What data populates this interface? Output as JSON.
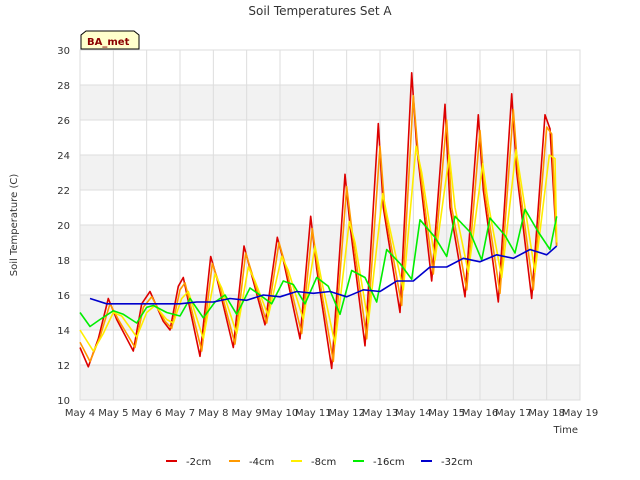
{
  "chart_data": {
    "type": "line",
    "title": "Soil Temperatures Set A",
    "xlabel": "Time",
    "ylabel": "Soil Temperature (C)",
    "badge": "BA_met",
    "ylim": [
      10,
      30
    ],
    "yticks": [
      10,
      12,
      14,
      16,
      18,
      20,
      22,
      24,
      26,
      28,
      30
    ],
    "xlim": [
      4,
      19
    ],
    "xticks": [
      {
        "x": 4,
        "label": "May 4"
      },
      {
        "x": 5,
        "label": "May 5"
      },
      {
        "x": 6,
        "label": "May 6"
      },
      {
        "x": 7,
        "label": "May 7"
      },
      {
        "x": 8,
        "label": "May 8"
      },
      {
        "x": 9,
        "label": "May 9"
      },
      {
        "x": 10,
        "label": "May 10"
      },
      {
        "x": 11,
        "label": "May 11"
      },
      {
        "x": 12,
        "label": "May 12"
      },
      {
        "x": 13,
        "label": "May 13"
      },
      {
        "x": 14,
        "label": "May 14"
      },
      {
        "x": 15,
        "label": "May 15"
      },
      {
        "x": 16,
        "label": "May 16"
      },
      {
        "x": 17,
        "label": "May 17"
      },
      {
        "x": 18,
        "label": "May 18"
      },
      {
        "x": 19,
        "label": "May 19"
      }
    ],
    "grid": true,
    "legend_position": "bottom",
    "series": [
      {
        "name": "-2cm",
        "color": "#dd0000",
        "x": [
          4.0,
          4.25,
          4.55,
          4.85,
          5.1,
          5.6,
          5.85,
          6.1,
          6.5,
          6.7,
          6.95,
          7.1,
          7.6,
          7.92,
          8.1,
          8.6,
          8.92,
          9.1,
          9.55,
          9.92,
          10.1,
          10.6,
          10.92,
          11.1,
          11.55,
          11.95,
          12.1,
          12.55,
          12.95,
          13.1,
          13.6,
          13.95,
          14.1,
          14.55,
          14.95,
          15.1,
          15.55,
          15.95,
          16.1,
          16.55,
          16.95,
          17.1,
          17.55,
          17.95,
          18.1,
          18.3
        ],
        "y": [
          13.0,
          11.9,
          13.5,
          15.8,
          14.6,
          12.8,
          15.5,
          16.2,
          14.5,
          14.0,
          16.5,
          17.0,
          12.5,
          18.2,
          17.0,
          13.0,
          18.8,
          17.5,
          14.3,
          19.3,
          18.0,
          13.5,
          20.5,
          17.5,
          11.8,
          22.9,
          20.0,
          13.1,
          25.8,
          21.0,
          15.0,
          28.7,
          24.5,
          16.8,
          26.9,
          21.0,
          15.9,
          26.3,
          22.0,
          15.6,
          27.5,
          23.0,
          15.8,
          26.3,
          25.5,
          18.8
        ]
      },
      {
        "name": "-4cm",
        "color": "#ff9900",
        "x": [
          4.0,
          4.3,
          4.6,
          4.9,
          5.15,
          5.65,
          5.9,
          6.15,
          6.55,
          6.75,
          7.0,
          7.15,
          7.65,
          7.97,
          8.15,
          8.65,
          8.97,
          9.15,
          9.6,
          9.97,
          10.15,
          10.65,
          10.97,
          11.15,
          11.6,
          12.0,
          12.15,
          12.6,
          13.0,
          13.15,
          13.65,
          14.0,
          14.15,
          14.6,
          15.0,
          15.15,
          15.6,
          16.0,
          16.15,
          16.6,
          17.0,
          17.15,
          17.6,
          18.0,
          18.15,
          18.3
        ],
        "y": [
          13.3,
          12.2,
          13.6,
          15.5,
          14.6,
          13.0,
          15.3,
          15.9,
          14.5,
          14.1,
          16.3,
          16.7,
          12.8,
          17.8,
          16.8,
          13.2,
          18.4,
          17.3,
          14.4,
          19.0,
          17.8,
          13.8,
          19.8,
          17.3,
          12.2,
          22.2,
          19.8,
          13.5,
          24.5,
          20.8,
          15.4,
          27.4,
          24.0,
          17.2,
          26.0,
          21.0,
          16.3,
          25.4,
          21.8,
          16.1,
          26.6,
          22.8,
          16.3,
          25.6,
          25.2,
          18.8
        ]
      },
      {
        "name": "-8cm",
        "color": "#ffee00",
        "x": [
          4.0,
          4.4,
          4.7,
          5.0,
          5.25,
          5.7,
          6.0,
          6.25,
          6.6,
          6.8,
          7.05,
          7.25,
          7.7,
          8.05,
          8.25,
          8.7,
          9.05,
          9.25,
          9.65,
          10.05,
          10.25,
          10.7,
          11.05,
          11.25,
          11.65,
          12.08,
          12.25,
          12.65,
          13.08,
          13.25,
          13.7,
          14.08,
          14.25,
          14.65,
          15.08,
          15.25,
          15.65,
          16.08,
          16.25,
          16.65,
          17.08,
          17.25,
          17.65,
          18.08,
          18.25,
          18.3
        ],
        "y": [
          14.0,
          12.8,
          13.8,
          15.0,
          14.8,
          13.6,
          15.0,
          15.4,
          14.6,
          14.4,
          15.8,
          16.2,
          13.5,
          17.2,
          16.4,
          13.8,
          17.6,
          16.8,
          14.8,
          18.2,
          17.4,
          14.6,
          18.8,
          16.8,
          13.2,
          20.2,
          19.0,
          14.4,
          21.8,
          20.2,
          16.3,
          24.5,
          23.0,
          18.0,
          24.0,
          21.0,
          17.3,
          23.5,
          21.2,
          17.0,
          24.3,
          22.2,
          17.3,
          24.0,
          23.8,
          19.0
        ]
      },
      {
        "name": "-16cm",
        "color": "#00ee00",
        "x": [
          4.0,
          4.3,
          4.6,
          5.0,
          5.3,
          5.7,
          6.0,
          6.2,
          6.6,
          7.0,
          7.3,
          7.7,
          8.05,
          8.35,
          8.7,
          9.1,
          9.4,
          9.75,
          10.1,
          10.4,
          10.75,
          11.1,
          11.45,
          11.8,
          12.15,
          12.55,
          12.9,
          13.2,
          13.6,
          13.95,
          14.2,
          14.65,
          15.0,
          15.25,
          15.7,
          16.05,
          16.3,
          16.75,
          17.05,
          17.35,
          17.75,
          18.1,
          18.3
        ],
        "y": [
          15.0,
          14.2,
          14.6,
          15.1,
          14.9,
          14.4,
          15.3,
          15.4,
          15.0,
          14.8,
          15.8,
          14.7,
          15.6,
          16.0,
          14.9,
          16.4,
          16.0,
          15.5,
          16.8,
          16.6,
          15.5,
          17.0,
          16.5,
          14.9,
          17.4,
          17.0,
          15.6,
          18.6,
          17.8,
          16.9,
          20.3,
          19.3,
          18.2,
          20.5,
          19.6,
          18.0,
          20.4,
          19.4,
          18.4,
          20.9,
          19.6,
          18.6,
          20.5
        ]
      },
      {
        "name": "-32cm",
        "color": "#0000cc",
        "x": [
          4.3,
          4.8,
          5.5,
          6.0,
          6.5,
          7.0,
          7.5,
          8.0,
          8.5,
          9.0,
          9.5,
          10.0,
          10.5,
          11.0,
          11.5,
          12.0,
          12.5,
          13.0,
          13.5,
          14.0,
          14.5,
          15.0,
          15.5,
          16.0,
          16.5,
          17.0,
          17.5,
          18.0,
          18.3
        ],
        "y": [
          15.8,
          15.5,
          15.5,
          15.5,
          15.5,
          15.5,
          15.6,
          15.6,
          15.8,
          15.7,
          16.0,
          15.9,
          16.2,
          16.1,
          16.2,
          15.9,
          16.3,
          16.2,
          16.8,
          16.8,
          17.6,
          17.6,
          18.1,
          17.9,
          18.3,
          18.1,
          18.6,
          18.3,
          18.8
        ]
      }
    ]
  }
}
